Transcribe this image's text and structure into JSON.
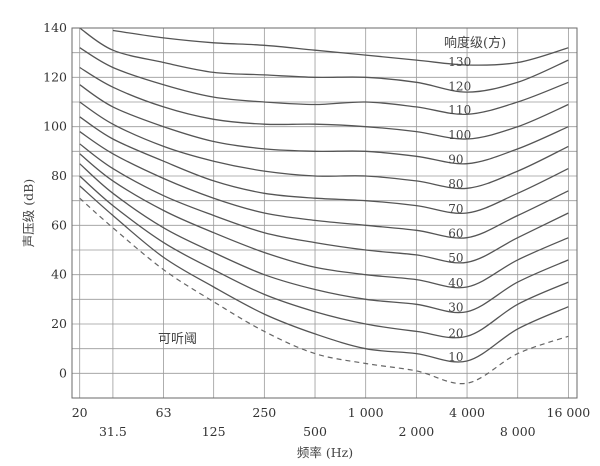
{
  "chart_data": {
    "type": "line",
    "xlabel": "频率 (Hz)",
    "ylabel": "声压级 (dB)",
    "legend_title": "响度级(方)",
    "threshold_label": "可听阈",
    "xscale": "log",
    "xlim": [
      18,
      18000
    ],
    "ylim": [
      -10,
      140
    ],
    "grid": true,
    "x_ticks": [
      20,
      31.5,
      63,
      125,
      250,
      500,
      1000,
      2000,
      4000,
      8000,
      16000
    ],
    "x_tick_labels": [
      "20",
      "31.5",
      "63",
      "125",
      "250",
      "500",
      "1 000",
      "2 000",
      "4 000",
      "8 000",
      "16 000"
    ],
    "y_ticks": [
      0,
      20,
      40,
      60,
      80,
      100,
      120,
      140
    ],
    "y_tick_labels": [
      "0",
      "20",
      "40",
      "60",
      "80",
      "100",
      "120",
      "140"
    ],
    "x": [
      20,
      31.5,
      63,
      125,
      250,
      500,
      1000,
      2000,
      4000,
      8000,
      16000
    ],
    "series": [
      {
        "name": "130",
        "values": [
          null,
          139,
          136,
          134,
          133,
          131,
          129,
          127,
          125,
          126,
          132
        ]
      },
      {
        "name": "120",
        "values": [
          140,
          131,
          126,
          122,
          121,
          120,
          120,
          118,
          114,
          118,
          127
        ]
      },
      {
        "name": "110",
        "values": [
          132,
          124,
          117,
          112,
          110,
          109,
          110,
          108,
          105,
          110,
          118
        ]
      },
      {
        "name": "100",
        "values": [
          124,
          116,
          108,
          103,
          101,
          101,
          100,
          98,
          95,
          100,
          109
        ]
      },
      {
        "name": "90",
        "values": [
          117,
          108,
          100,
          94,
          91,
          90,
          90,
          88,
          85,
          91,
          100
        ]
      },
      {
        "name": "80",
        "values": [
          110,
          101,
          92,
          86,
          82,
          80,
          80,
          78,
          75,
          82,
          92
        ]
      },
      {
        "name": "70",
        "values": [
          104,
          95,
          86,
          78,
          73,
          71,
          70,
          68,
          65,
          73,
          83
        ]
      },
      {
        "name": "60",
        "values": [
          98,
          89,
          79,
          71,
          65,
          62,
          60,
          58,
          55,
          64,
          74
        ]
      },
      {
        "name": "50",
        "values": [
          93,
          83,
          72,
          64,
          57,
          53,
          50,
          48,
          45,
          55,
          65
        ]
      },
      {
        "name": "40",
        "values": [
          89,
          78,
          66,
          57,
          49,
          43,
          40,
          38,
          35,
          46,
          55
        ]
      },
      {
        "name": "30",
        "values": [
          85,
          73,
          59,
          49,
          40,
          34,
          30,
          28,
          25,
          37,
          46
        ]
      },
      {
        "name": "20",
        "values": [
          80,
          68,
          53,
          42,
          32,
          25,
          20,
          17,
          15,
          28,
          37
        ]
      },
      {
        "name": "10",
        "values": [
          76,
          64,
          47,
          35,
          24,
          16,
          10,
          8,
          5,
          18,
          27
        ]
      },
      {
        "name": "可听阈",
        "values": [
          71,
          59,
          42,
          29,
          17,
          8,
          4,
          1,
          -4,
          8,
          15
        ]
      }
    ]
  }
}
